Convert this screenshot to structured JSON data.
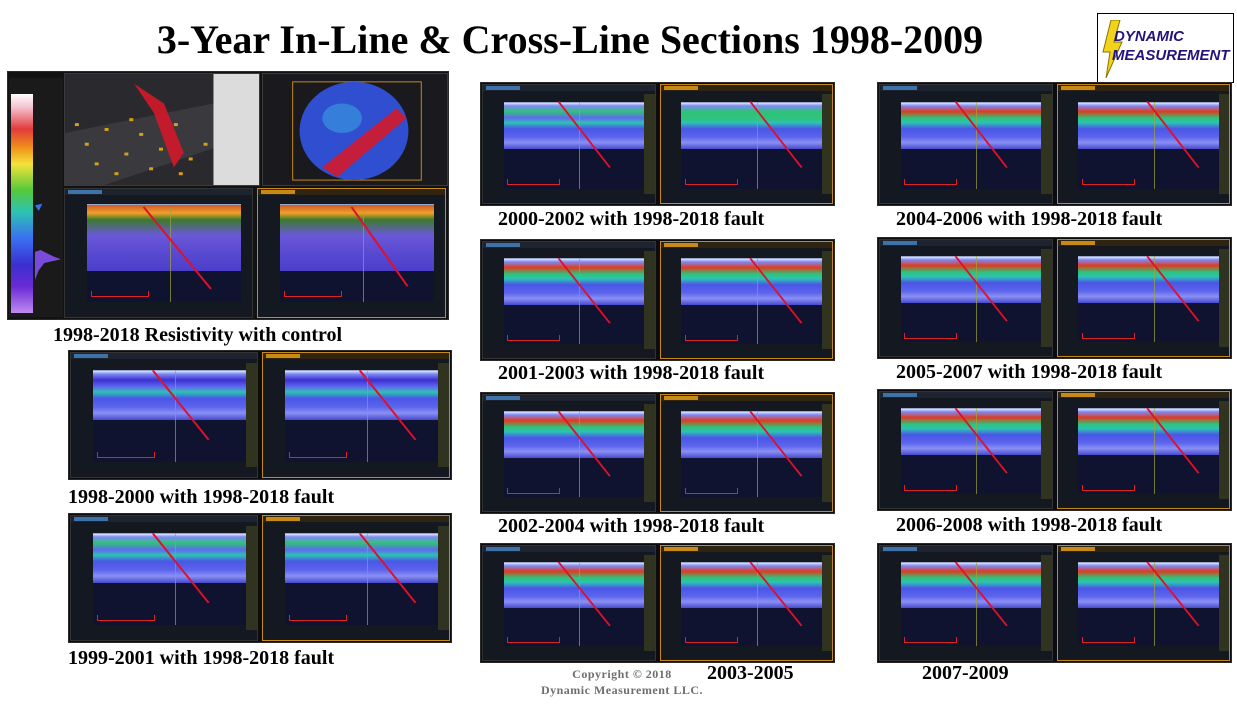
{
  "page": {
    "title": "3-Year In-Line & Cross-Line Sections 1998-2009",
    "logo": {
      "line1": "DYNAMIC",
      "line2": "MEASUREMENT"
    },
    "copyright": {
      "line1": "Copyright © 2018",
      "line2": "Dynamic Measurement LLC."
    }
  },
  "panels": [
    {
      "id": "control",
      "caption": "1998-2018 Resistivity with control"
    },
    {
      "id": "p1998",
      "caption": "1998-2000 with 1998-2018 fault"
    },
    {
      "id": "p1999",
      "caption": "1999-2001 with 1998-2018 fault"
    },
    {
      "id": "p2000",
      "caption": "2000-2002 with 1998-2018 fault"
    },
    {
      "id": "p2001",
      "caption": "2001-2003 with 1998-2018 fault"
    },
    {
      "id": "p2002",
      "caption": "2002-2004 with 1998-2018 fault"
    },
    {
      "id": "p2003",
      "caption": "2003-2005"
    },
    {
      "id": "p2004",
      "caption": "2004-2006 with 1998-2018 fault"
    },
    {
      "id": "p2005",
      "caption": "2005-2007 with 1998-2018 fault"
    },
    {
      "id": "p2006",
      "caption": "2006-2008 with 1998-2018 fault"
    },
    {
      "id": "p2007",
      "caption": "2007-2009"
    }
  ],
  "colors": {
    "fault": "#e0102a",
    "band_low": "#3b2fd0",
    "band_mid": "#2fc27a",
    "band_high": "#e23b1e",
    "section_base": "#4a56e6"
  },
  "icons": [
    "lightning-bolt-icon"
  ]
}
